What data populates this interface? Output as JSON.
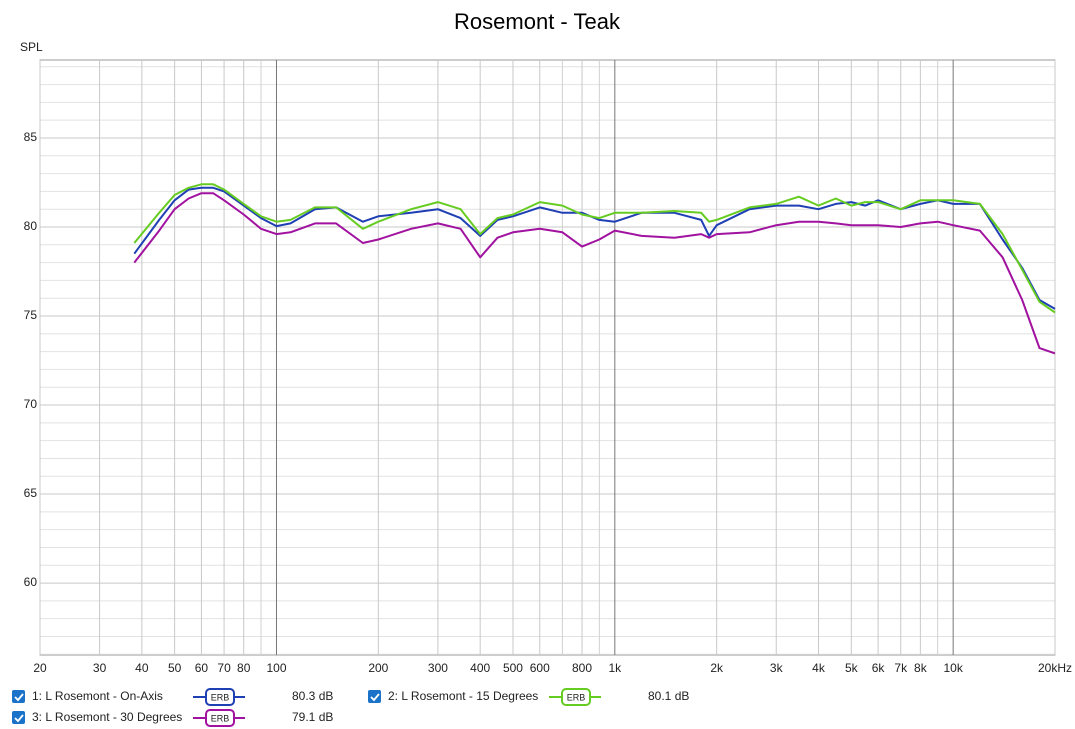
{
  "chart_data": {
    "type": "line",
    "title": "Rosemont - Teak",
    "y_label": "SPL",
    "log_x": true,
    "grid": true,
    "xlim": [
      20,
      20000
    ],
    "ylim": [
      55.96,
      89.38
    ],
    "xticks": [
      20,
      30,
      40,
      50,
      60,
      70,
      80,
      100,
      200,
      300,
      400,
      500,
      600,
      800,
      {
        "value": 1000,
        "label": "1k"
      },
      {
        "value": 2000,
        "label": "2k"
      },
      {
        "value": 3000,
        "label": "3k"
      },
      {
        "value": 4000,
        "label": "4k"
      },
      {
        "value": 5000,
        "label": "5k"
      },
      {
        "value": 6000,
        "label": "6k"
      },
      {
        "value": 7000,
        "label": "7k"
      },
      {
        "value": 8000,
        "label": "8k"
      },
      {
        "value": 10000,
        "label": "10k"
      },
      {
        "value": 20000,
        "label": "20kHz"
      }
    ],
    "yticks": [
      60,
      65,
      70,
      75,
      80,
      85
    ],
    "x": [
      38,
      45,
      50,
      55,
      60,
      65,
      70,
      80,
      90,
      100,
      110,
      130,
      150,
      180,
      200,
      250,
      300,
      350,
      400,
      450,
      500,
      600,
      700,
      800,
      900,
      1000,
      1200,
      1500,
      1800,
      1900,
      2000,
      2500,
      3000,
      3500,
      4000,
      4500,
      5000,
      5500,
      6000,
      7000,
      8000,
      9000,
      10000,
      12000,
      14000,
      16000,
      18000,
      20000
    ],
    "series": [
      {
        "name": "1: L Rosemont - On-Axis",
        "color": "#1f3fb4",
        "smoothing": "ERB",
        "level": "80.3 dB",
        "values": [
          78.5,
          80.4,
          81.5,
          82.1,
          82.2,
          82.2,
          82.0,
          81.2,
          80.5,
          80.05,
          80.2,
          81.0,
          81.1,
          80.3,
          80.6,
          80.8,
          81.0,
          80.5,
          79.5,
          80.4,
          80.6,
          81.1,
          80.8,
          80.8,
          80.4,
          80.3,
          80.8,
          80.8,
          80.4,
          79.5,
          80.1,
          81.0,
          81.2,
          81.2,
          81.0,
          81.3,
          81.4,
          81.2,
          81.5,
          81.0,
          81.3,
          81.5,
          81.3,
          81.3,
          79.3,
          77.7,
          75.9,
          75.4
        ]
      },
      {
        "name": "2: L Rosemont - 15 Degrees",
        "color": "#66cc22",
        "smoothing": "ERB",
        "level": "80.1 dB",
        "values": [
          79.1,
          80.8,
          81.8,
          82.2,
          82.4,
          82.4,
          82.1,
          81.3,
          80.6,
          80.3,
          80.4,
          81.1,
          81.1,
          79.9,
          80.3,
          81.0,
          81.4,
          81.0,
          79.6,
          80.5,
          80.7,
          81.4,
          81.2,
          80.7,
          80.5,
          80.8,
          80.8,
          80.9,
          80.8,
          80.3,
          80.4,
          81.1,
          81.3,
          81.7,
          81.2,
          81.6,
          81.2,
          81.4,
          81.4,
          81.0,
          81.5,
          81.5,
          81.5,
          81.3,
          79.6,
          77.6,
          75.8,
          75.2
        ]
      },
      {
        "name": "3: L Rosemont - 30 Degrees",
        "color": "#a0129f",
        "smoothing": "ERB",
        "level": "79.1 dB",
        "values": [
          78.0,
          79.8,
          81.0,
          81.6,
          81.9,
          81.9,
          81.5,
          80.7,
          79.9,
          79.6,
          79.7,
          80.2,
          80.2,
          79.1,
          79.3,
          79.9,
          80.2,
          79.9,
          78.3,
          79.4,
          79.7,
          79.9,
          79.7,
          78.9,
          79.3,
          79.8,
          79.5,
          79.4,
          79.6,
          79.4,
          79.6,
          79.7,
          80.1,
          80.3,
          80.3,
          80.2,
          80.1,
          80.1,
          80.1,
          80.0,
          80.2,
          80.3,
          80.1,
          79.8,
          78.3,
          75.9,
          73.2,
          72.9
        ]
      }
    ]
  }
}
